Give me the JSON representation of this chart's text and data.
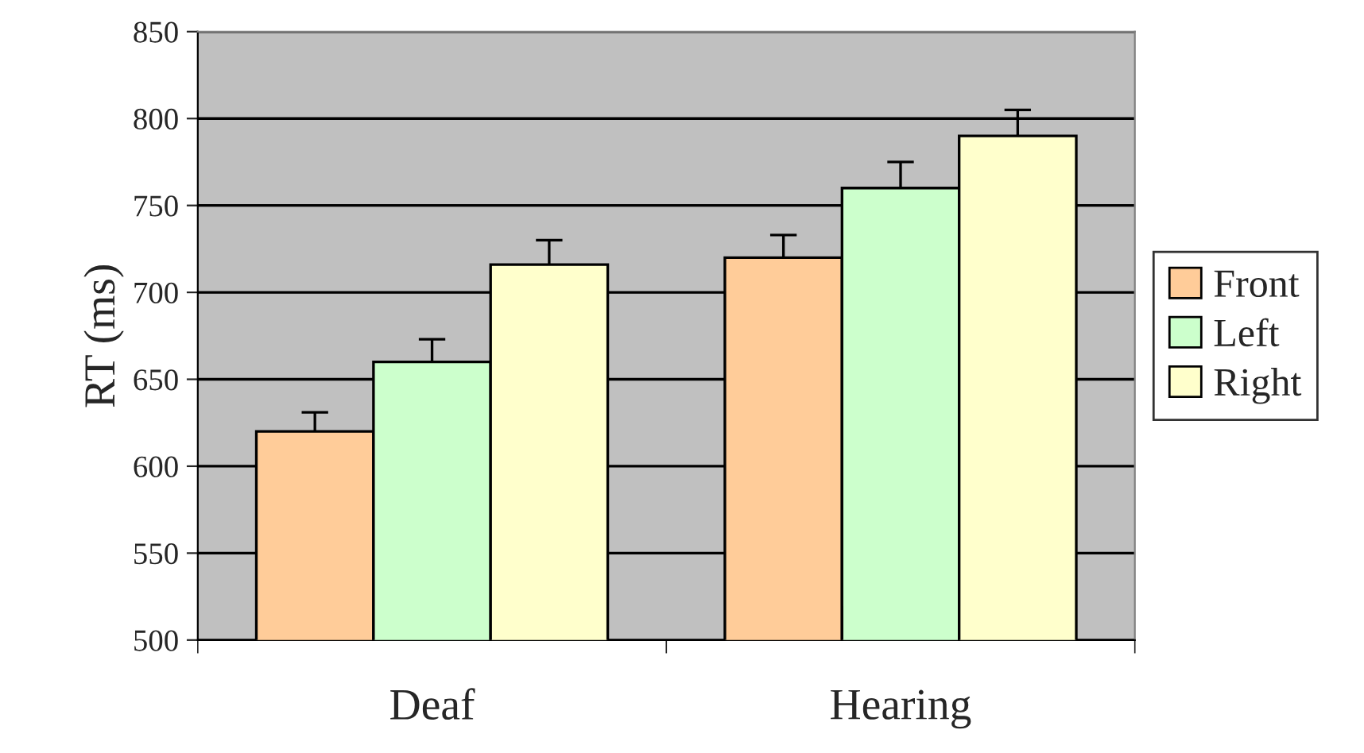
{
  "chart_data": {
    "type": "bar",
    "ylabel": "RT (ms)",
    "categories": [
      "Deaf",
      "Hearing"
    ],
    "series": [
      {
        "name": "Front",
        "color": "#ffcc99",
        "values": [
          620,
          720
        ],
        "errors": [
          11,
          13
        ]
      },
      {
        "name": "Left",
        "color": "#ccffcc",
        "values": [
          660,
          760
        ],
        "errors": [
          13,
          15
        ]
      },
      {
        "name": "Right",
        "color": "#ffffcc",
        "values": [
          716,
          790
        ],
        "errors": [
          14,
          15
        ]
      }
    ],
    "ylim": [
      500,
      850
    ],
    "yticks": [
      500,
      550,
      600,
      650,
      700,
      750,
      800,
      850
    ],
    "grid": "y",
    "legend": "right"
  }
}
